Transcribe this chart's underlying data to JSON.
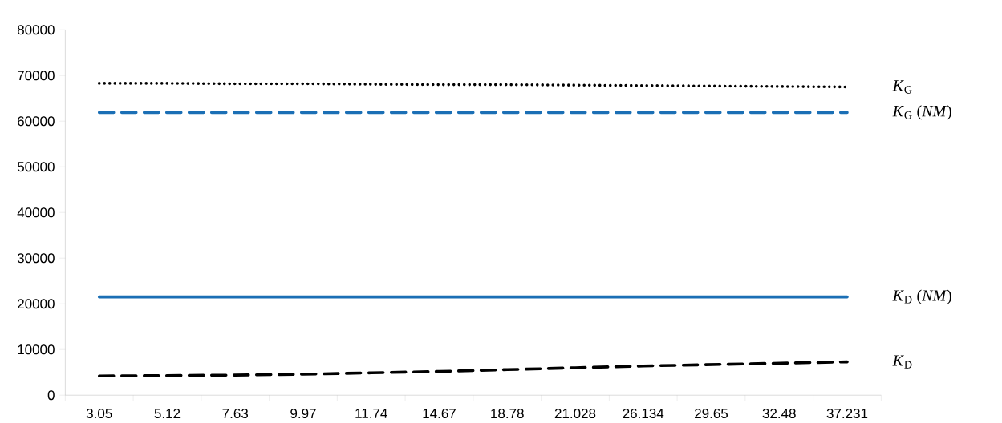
{
  "chart_data": {
    "type": "line",
    "categories": [
      "3.05",
      "5.12",
      "7.63",
      "9.97",
      "11.74",
      "14.67",
      "18.78",
      "21.028",
      "26.134",
      "29.65",
      "32.48",
      "37.231"
    ],
    "series": [
      {
        "name": "*K*$_{G}$",
        "color": "#000000",
        "line_style": "dotted",
        "values": [
          68300,
          68300,
          68200,
          68200,
          68100,
          68000,
          68000,
          67900,
          67800,
          67700,
          67600,
          67500
        ]
      },
      {
        "name": "*K*$_{G}$ (*NM*)",
        "color": "#1b6fb5",
        "line_style": "dashed",
        "values": [
          61900,
          61900,
          61900,
          61900,
          61900,
          61900,
          61900,
          61900,
          61900,
          61900,
          61900,
          61900
        ]
      },
      {
        "name": "*K*$_{D}$ (*NM*)",
        "color": "#1b6fb5",
        "line_style": "solid",
        "values": [
          21500,
          21500,
          21500,
          21500,
          21500,
          21500,
          21500,
          21500,
          21500,
          21500,
          21500,
          21500
        ]
      },
      {
        "name": "*K*$_{D}$",
        "color": "#000000",
        "line_style": "dashed",
        "values": [
          4200,
          4300,
          4400,
          4600,
          4900,
          5200,
          5600,
          6000,
          6400,
          6700,
          7000,
          7300
        ]
      }
    ],
    "ylim": [
      0,
      80000
    ],
    "yticks": [
      0,
      10000,
      20000,
      30000,
      40000,
      50000,
      60000,
      70000,
      80000
    ],
    "grid": false,
    "legend": false
  }
}
